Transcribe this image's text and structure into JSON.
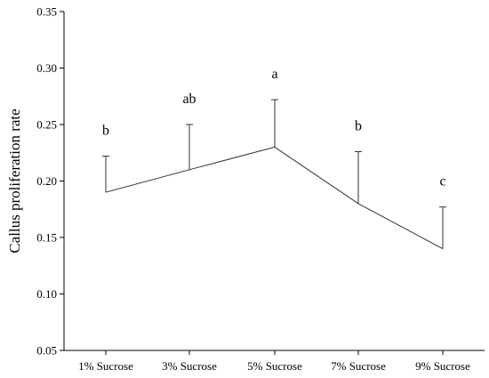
{
  "chart_data": {
    "type": "line",
    "title": "",
    "xlabel": "",
    "ylabel": "Callus proliferation rate",
    "categories": [
      "1% Sucrose",
      "3% Sucrose",
      "5% Sucrose",
      "7% Sucrose",
      "9% Sucrose"
    ],
    "series": [
      {
        "values": [
          0.19,
          0.21,
          0.23,
          0.18,
          0.14
        ],
        "errors": [
          0.032,
          0.04,
          0.042,
          0.046,
          0.037
        ],
        "significance": [
          "b",
          "ab",
          "a",
          "b",
          "c"
        ],
        "color": "#333333"
      }
    ],
    "ylim": [
      0.05,
      0.35
    ],
    "yticks": [
      0.05,
      0.1,
      0.15,
      0.2,
      0.25,
      0.3,
      0.35
    ],
    "ytick_labels": [
      "0.05",
      "0.10",
      "0.15",
      "0.20",
      "0.25",
      "0.30",
      "0.35"
    ],
    "grid": false,
    "legend": "none"
  }
}
